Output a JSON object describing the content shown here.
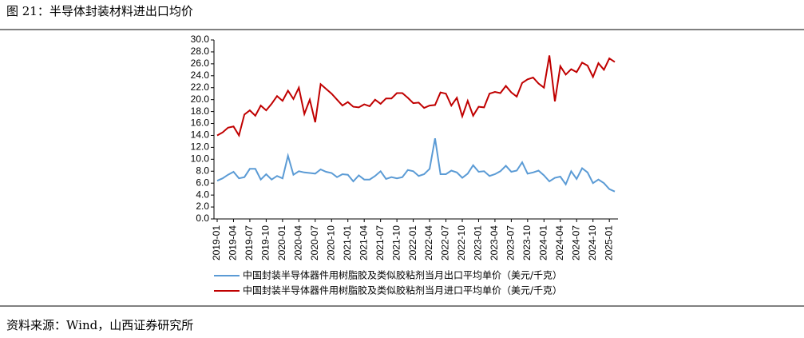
{
  "chart_data": {
    "type": "line",
    "title": "图 21：半导体封装材料进出口均价",
    "source": "资料来源：Wind，山西证券研究所",
    "categories": [
      "2019-01",
      null,
      null,
      "2019-04",
      null,
      null,
      "2019-07",
      null,
      null,
      "2019-10",
      null,
      null,
      "2020-01",
      null,
      null,
      "2020-04",
      null,
      null,
      "2020-07",
      null,
      null,
      "2020-10",
      null,
      null,
      "2021-01",
      null,
      null,
      "2021-04",
      null,
      null,
      "2021-07",
      null,
      null,
      "2021-10",
      null,
      null,
      "2022-01",
      null,
      null,
      "2022-04",
      null,
      null,
      "2022-07",
      null,
      null,
      "2022-10",
      null,
      null,
      "2023-01",
      null,
      null,
      "2023-04",
      null,
      null,
      "2023-07",
      null,
      null,
      "2023-10",
      null,
      null,
      "2024-01",
      null,
      null,
      "2024-04",
      null,
      null,
      "2024-07",
      null,
      null,
      "2024-10",
      null,
      null,
      "2025-01",
      null
    ],
    "series": [
      {
        "name": "中国封装半导体器件用树脂胶及类似胶粘剂当月出口平均单价（美元/千克）",
        "color": "#5b9bd5",
        "values": [
          6.4,
          6.8,
          7.4,
          7.9,
          6.8,
          7.0,
          8.4,
          8.4,
          6.6,
          7.5,
          6.6,
          7.2,
          6.8,
          10.6,
          7.4,
          8.0,
          7.8,
          7.7,
          7.6,
          8.3,
          7.9,
          7.7,
          7.0,
          7.5,
          7.4,
          6.3,
          7.3,
          6.6,
          6.6,
          7.2,
          8.0,
          6.7,
          7.0,
          6.8,
          7.0,
          8.2,
          8.0,
          7.2,
          7.5,
          8.4,
          13.5,
          7.5,
          7.5,
          8.1,
          7.8,
          6.9,
          7.6,
          9.0,
          7.9,
          8.0,
          7.2,
          7.5,
          8.0,
          8.9,
          7.9,
          8.1,
          9.5,
          7.6,
          7.8,
          8.1,
          7.3,
          6.3,
          6.9,
          7.1,
          5.8,
          8.0,
          6.7,
          8.5,
          7.8,
          6.0,
          6.6,
          6.0,
          5.0,
          4.6
        ]
      },
      {
        "name": "中国封装半导体器件用树脂胶及类似胶粘剂当月进口平均单价（美元/千克）",
        "color": "#c00000",
        "values": [
          14.0,
          14.5,
          15.3,
          15.5,
          14.0,
          17.5,
          18.2,
          17.3,
          19.0,
          18.2,
          19.3,
          20.6,
          19.8,
          21.5,
          20.1,
          22.0,
          17.6,
          20.0,
          16.2,
          22.6,
          21.8,
          21.0,
          20.0,
          19.0,
          19.6,
          18.8,
          18.7,
          19.2,
          18.9,
          20.0,
          19.3,
          20.2,
          20.2,
          21.1,
          21.1,
          20.3,
          19.4,
          19.5,
          18.6,
          19.0,
          19.1,
          21.2,
          21.0,
          19.0,
          20.3,
          17.2,
          19.8,
          17.3,
          18.8,
          18.7,
          21.0,
          21.3,
          21.1,
          22.3,
          21.2,
          20.5,
          22.8,
          23.4,
          23.7,
          22.7,
          22.0,
          27.4,
          19.7,
          25.6,
          24.2,
          25.1,
          24.6,
          26.2,
          25.7,
          23.8,
          26.1,
          25.0,
          26.9,
          26.3
        ]
      }
    ],
    "ylim": [
      0,
      30
    ],
    "yticks": [
      {
        "value": 0,
        "label": "0.0"
      },
      {
        "value": 2,
        "label": "2.0"
      },
      {
        "value": 4,
        "label": "4.0"
      },
      {
        "value": 6,
        "label": "6.0"
      },
      {
        "value": 8,
        "label": "8.0"
      },
      {
        "value": 10,
        "label": "10.0"
      },
      {
        "value": 12,
        "label": "12.0"
      },
      {
        "value": 14,
        "label": "14.0"
      },
      {
        "value": 16,
        "label": "16.0"
      },
      {
        "value": 18,
        "label": "18.0"
      },
      {
        "value": 20,
        "label": "20.0"
      },
      {
        "value": 22,
        "label": "22.0"
      },
      {
        "value": 24,
        "label": "24.0"
      },
      {
        "value": 26,
        "label": "26.0"
      },
      {
        "value": 28,
        "label": "28.0"
      },
      {
        "value": 30,
        "label": "30.0"
      }
    ],
    "grid": false
  }
}
